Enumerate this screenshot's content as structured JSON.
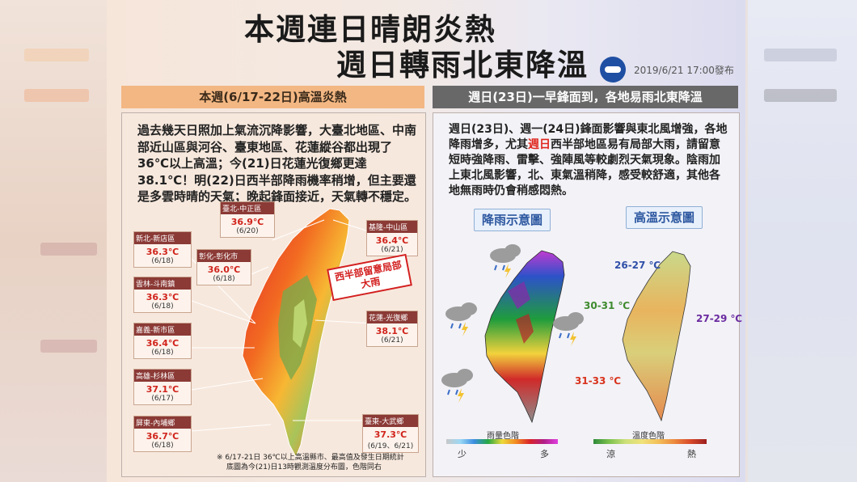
{
  "poster": {
    "title_line1": "本週連日晴朗炎熱",
    "title_line2": "週日轉雨北東降溫",
    "issued": "2019/6/21 17:00發布",
    "logo_icon": "cwb-logo-icon"
  },
  "left_section": {
    "header": "本週(6/17-22日)高溫炎熱",
    "body": "過去幾天日照加上氣流沉降影響，大臺北地區、中南部近山區與河谷、臺東地區、花蓮縱谷都出現了36℃以上高溫；今(21)日花蓮光復鄉更達38.1℃！明(22)日西半部降雨機率稍增，但主要還是多雲時晴的天氣；晚起鋒面接近，天氣轉不穩定。",
    "stations": [
      {
        "name": "臺北-中正區",
        "temp": "36.9℃",
        "date": "(6/20)"
      },
      {
        "name": "基隆-中山區",
        "temp": "36.4℃",
        "date": "(6/21)"
      },
      {
        "name": "新北-新店區",
        "temp": "36.3℃",
        "date": "(6/18)"
      },
      {
        "name": "彰化-彰化市",
        "temp": "36.0℃",
        "date": "(6/18)"
      },
      {
        "name": "雲林-斗南鎮",
        "temp": "36.3℃",
        "date": "(6/18)"
      },
      {
        "name": "花蓮-光復鄉",
        "temp": "38.1℃",
        "date": "(6/21)"
      },
      {
        "name": "嘉義-新市區",
        "temp": "36.4℃",
        "date": "(6/18)"
      },
      {
        "name": "高雄-杉林區",
        "temp": "37.1℃",
        "date": "(6/17)"
      },
      {
        "name": "臺東-大武鄉",
        "temp": "37.3℃",
        "date": "(6/19、6/21)"
      },
      {
        "name": "屏東-內埔鄉",
        "temp": "36.7℃",
        "date": "(6/18)"
      }
    ],
    "note_line1": "※ 6/17-21日 36℃以上高溫縣市、最高值及發生日期統計",
    "note_line2": "底圖為今(21)日13時觀測溫度分布圖，色階同右"
  },
  "right_section": {
    "header": "週日(23日)一早鋒面到，各地易雨北東降溫",
    "body_pre": "週日(23日)、週一(24日)鋒面影響與東北風增強，各地降雨增多，尤其",
    "body_highlight": "週日",
    "body_post": "西半部地區易有局部大雨，請留意短時強降雨、雷擊、強陣風等較劇烈天氣現象。陰雨加上東北風影響，北、東氣溫稍降，感受較舒適，其他各地無雨時仍會稍感悶熱。",
    "rain_map_title": "降雨示意圖",
    "temp_map_title": "高溫示意圖",
    "warning": "西半部留意局部大雨",
    "temp_labels": {
      "north": "26-27 ℃",
      "west": "30-31 ℃",
      "east": "27-29 ℃",
      "south": "31-33 ℃"
    },
    "rain_legend": {
      "title": "雨量色階",
      "low": "少",
      "high": "多"
    },
    "temp_legend": {
      "title": "溫度色階",
      "low": "涼",
      "high": "熱"
    }
  },
  "colors": {
    "accent_orange": "#f3b783",
    "header_gray": "#686869",
    "station_label": "#8b3a36",
    "temp_red": "#d0241c",
    "label_blue": "#2f4fa8",
    "label_green": "#3d8a2d",
    "label_purple": "#6a2ba0",
    "label_red": "#d8321c"
  }
}
